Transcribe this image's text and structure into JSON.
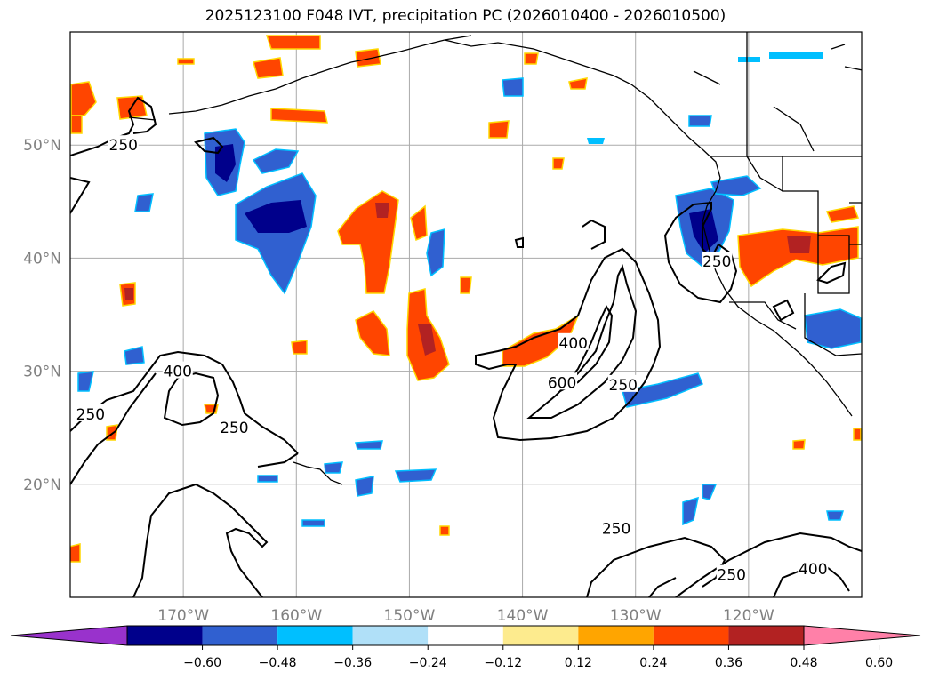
{
  "colors": {
    "neg_strong": "#00008b",
    "neg_mid": "#3060d0",
    "neg_light": "#00bfff",
    "pos_mid": "#ff4500",
    "pos_strong": "#b22222",
    "pos_edge": "#ffd700",
    "contour": "#000000",
    "grid": "#aaaaaa"
  },
  "chart_data": {
    "type": "contour_map",
    "title": "2025123100 F048 IVT, precipitation PC (2026010400 - 2026010500)",
    "lon_range": [
      -180,
      -110
    ],
    "lat_range": [
      10,
      60
    ],
    "lat_ticks": [
      {
        "value": 20,
        "label": "20°N"
      },
      {
        "value": 30,
        "label": "30°N"
      },
      {
        "value": 40,
        "label": "40°N"
      },
      {
        "value": 50,
        "label": "50°N"
      }
    ],
    "lon_ticks": [
      {
        "value": -170,
        "label": "170°W"
      },
      {
        "value": -160,
        "label": "160°W"
      },
      {
        "value": -150,
        "label": "150°W"
      },
      {
        "value": -140,
        "label": "140°W"
      },
      {
        "value": -130,
        "label": "130°W"
      },
      {
        "value": -120,
        "label": "120°W"
      }
    ],
    "contour_levels": [
      250,
      400,
      600
    ],
    "contour_labels": [
      {
        "text": "250",
        "lon": -175.3,
        "lat": 50.0
      },
      {
        "text": "400",
        "lon": -170.5,
        "lat": 30.0
      },
      {
        "text": "250",
        "lon": -178.2,
        "lat": 26.2
      },
      {
        "text": "250",
        "lon": -165.5,
        "lat": 25.0
      },
      {
        "text": "400",
        "lon": -135.5,
        "lat": 32.5
      },
      {
        "text": "600",
        "lon": -136.5,
        "lat": 29.0
      },
      {
        "text": "250",
        "lon": -131.1,
        "lat": 28.8
      },
      {
        "text": "250",
        "lon": -131.7,
        "lat": 16.1
      },
      {
        "text": "250",
        "lon": -121.5,
        "lat": 12.0
      },
      {
        "text": "400",
        "lon": -114.3,
        "lat": 12.5
      },
      {
        "text": "250",
        "lon": -122.8,
        "lat": 39.7
      }
    ],
    "colorbar": {
      "ticks": [
        "−0.60",
        "−0.48",
        "−0.36",
        "−0.24",
        "−0.12",
        "0.12",
        "0.24",
        "0.36",
        "0.48",
        "0.60"
      ],
      "colors": [
        "#9932cc",
        "#00008b",
        "#3060d0",
        "#00bfff",
        "#b0e0f8",
        "#ffffff",
        "#fdeb8e",
        "#ffa500",
        "#ff4500",
        "#b22222",
        "#ff80a8"
      ],
      "extend": "both"
    }
  }
}
